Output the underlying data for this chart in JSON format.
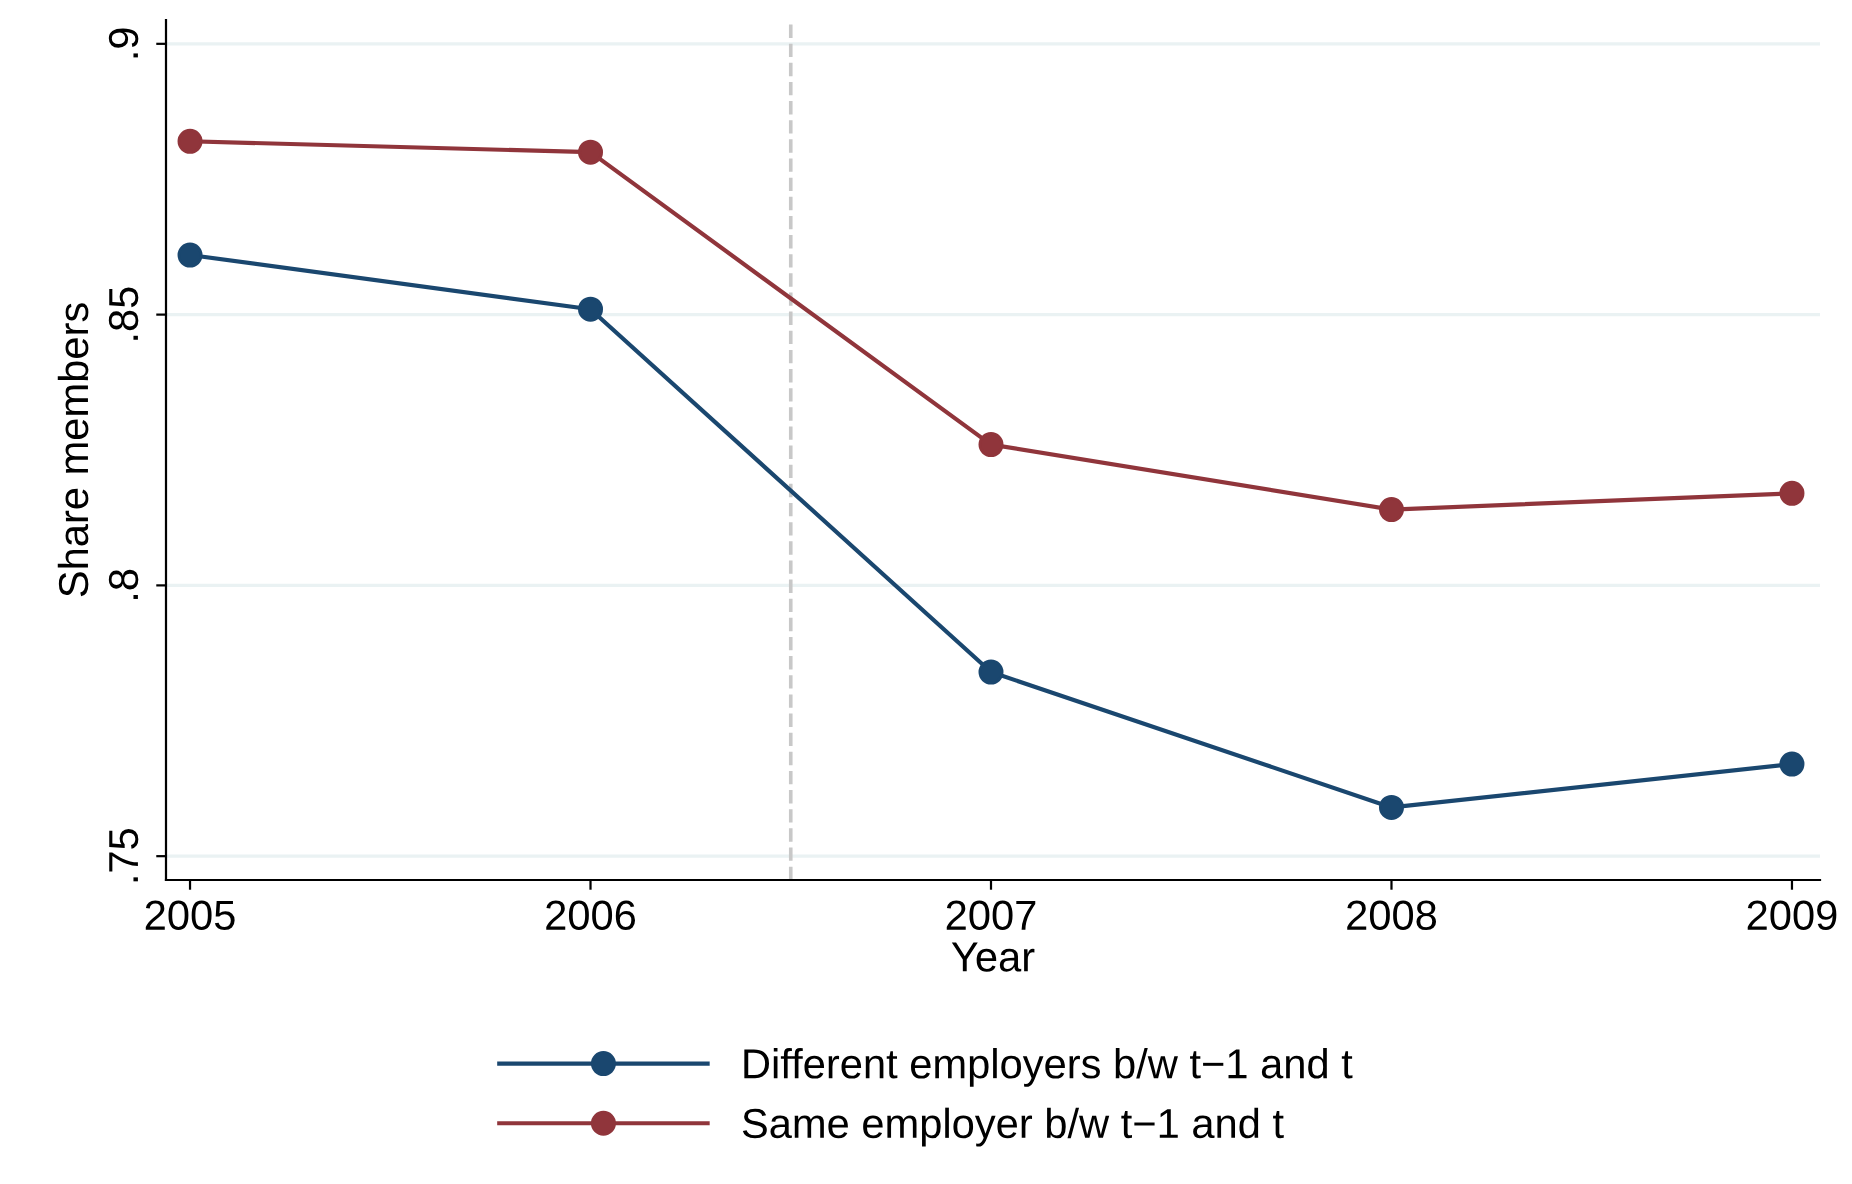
{
  "chart_data": {
    "type": "line",
    "xlabel": "Year",
    "ylabel": "Share members",
    "x": [
      2005,
      2006,
      2007,
      2008,
      2009
    ],
    "series": [
      {
        "name": "Different employers b/w t−1 and t",
        "color": "#1a476f",
        "values": [
          0.861,
          0.851,
          0.784,
          0.759,
          0.767
        ]
      },
      {
        "name": "Same employer b/w t−1 and t",
        "color": "#90353b",
        "values": [
          0.882,
          0.88,
          0.826,
          0.814,
          0.817
        ]
      }
    ],
    "xlim": [
      2004.94,
      2009.07
    ],
    "xticks": [
      2005,
      2006,
      2007,
      2008,
      2009
    ],
    "ylim": [
      0.7456,
      0.9044
    ],
    "yticks": [
      {
        "value": 0.75,
        "label": ".75"
      },
      {
        "value": 0.8,
        "label": ".8"
      },
      {
        "value": 0.85,
        "label": ".85"
      },
      {
        "value": 0.9,
        "label": ".9"
      }
    ],
    "ref_lines": [
      {
        "axis": "x",
        "value": 2006.5,
        "color": "#c8c8c8",
        "line_style": "dashed"
      }
    ],
    "grid": "y",
    "legend": "bottom",
    "marker": "circle",
    "line_style": "solid"
  }
}
